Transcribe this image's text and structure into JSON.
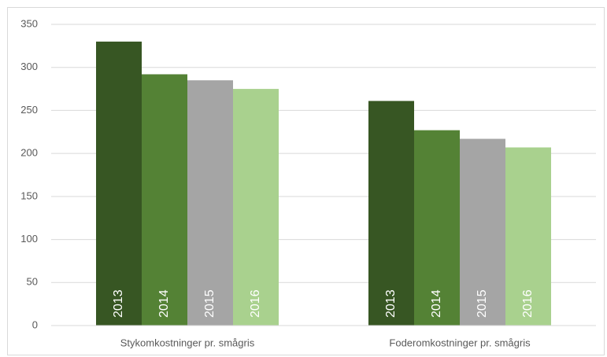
{
  "chart_data": {
    "type": "bar",
    "categories": [
      "Stykomkostninger pr. smågris",
      "Foderomkostninger pr. smågris"
    ],
    "series": [
      {
        "name": "2013",
        "color": "#375623",
        "values": [
          330,
          261
        ]
      },
      {
        "name": "2014",
        "color": "#548235",
        "values": [
          292,
          227
        ]
      },
      {
        "name": "2015",
        "color": "#a5a5a5",
        "values": [
          285,
          217
        ]
      },
      {
        "name": "2016",
        "color": "#a9d18e",
        "values": [
          275,
          207
        ]
      }
    ],
    "ylim": [
      0,
      350
    ],
    "yticks": [
      0,
      50,
      100,
      150,
      200,
      250,
      300,
      350
    ],
    "grid": true
  }
}
